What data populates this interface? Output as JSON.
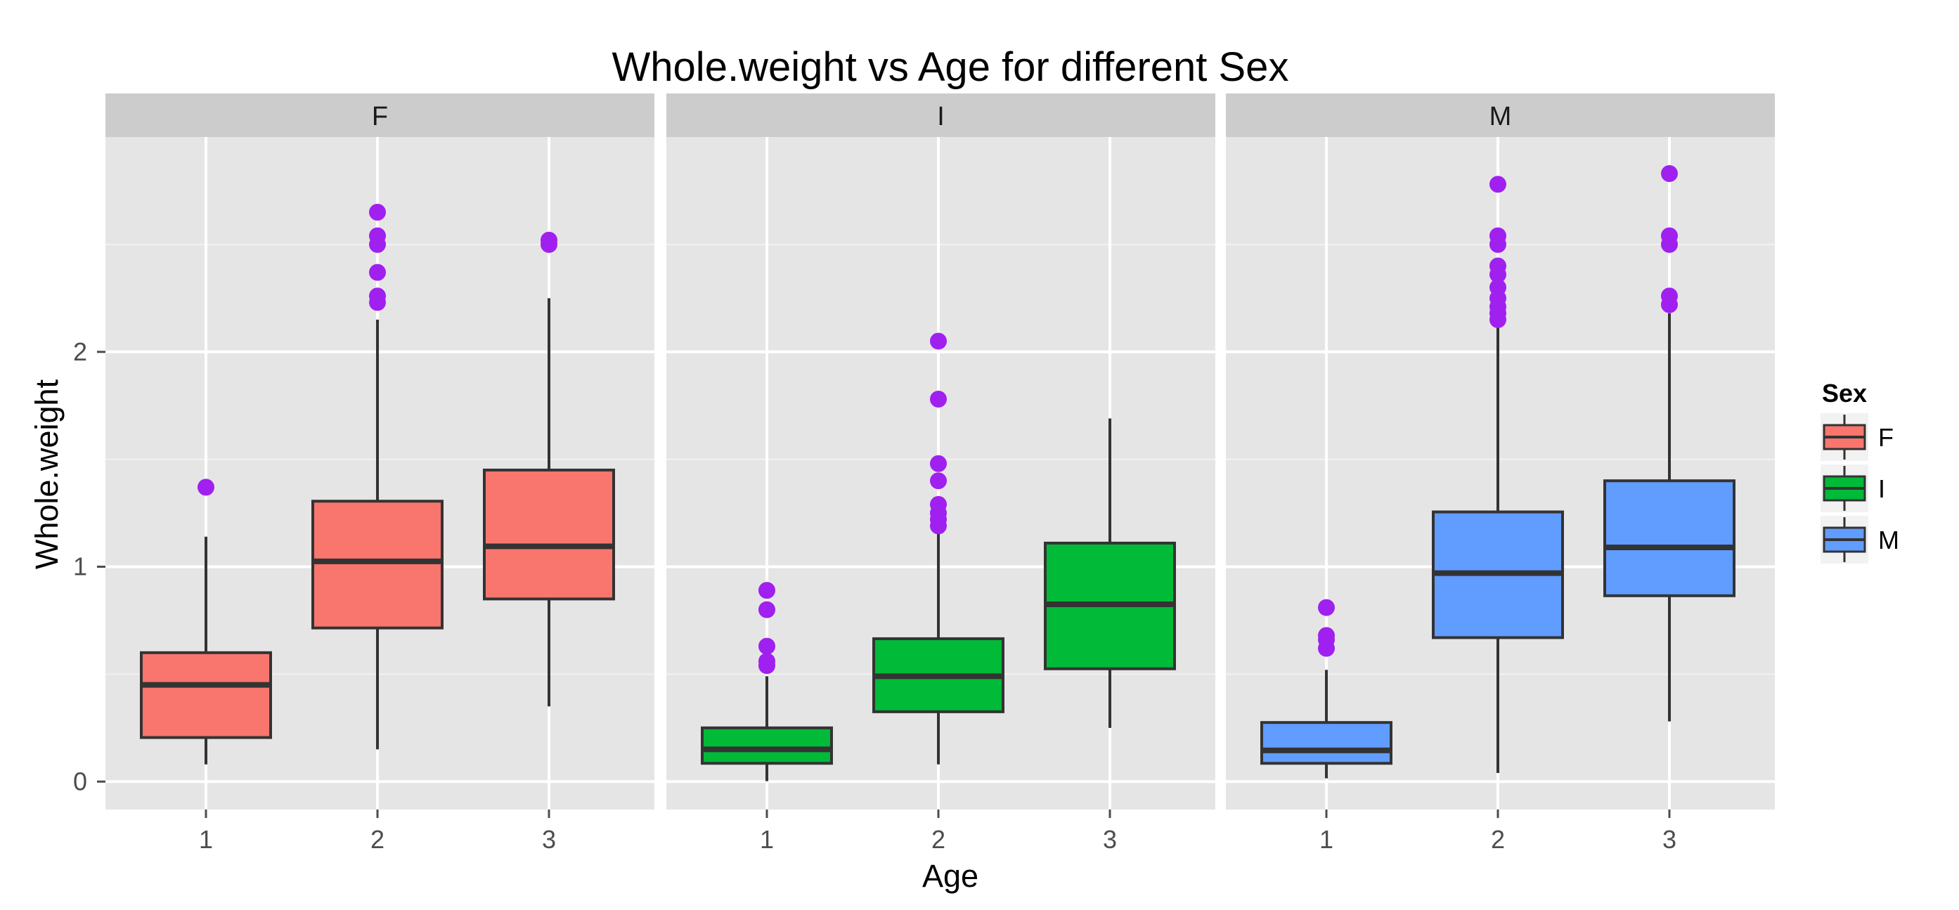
{
  "chart_data": {
    "type": "boxplot",
    "title": "Whole.weight vs Age for different Sex",
    "xlabel": "Age",
    "ylabel": "Whole.weight",
    "ylim": [
      -0.13,
      3.0
    ],
    "yticks": [
      0,
      1,
      2
    ],
    "ytick_labels": [
      "0",
      "1",
      "2"
    ],
    "categories": [
      "1",
      "2",
      "3"
    ],
    "grid": true,
    "facets": [
      {
        "label": "F",
        "fill": "#F8766D",
        "boxes": [
          {
            "age": "1",
            "lower_whisker": 0.08,
            "q1": 0.205,
            "median": 0.45,
            "q3": 0.6,
            "upper_whisker": 1.14,
            "outliers": [
              1.37
            ]
          },
          {
            "age": "2",
            "lower_whisker": 0.15,
            "q1": 0.715,
            "median": 1.025,
            "q3": 1.305,
            "upper_whisker": 2.15,
            "outliers": [
              2.23,
              2.26,
              2.37,
              2.5,
              2.54,
              2.65
            ]
          },
          {
            "age": "3",
            "lower_whisker": 0.35,
            "q1": 0.85,
            "median": 1.095,
            "q3": 1.45,
            "upper_whisker": 2.25,
            "outliers": [
              2.5,
              2.52
            ]
          }
        ]
      },
      {
        "label": "I",
        "fill": "#00BA38",
        "boxes": [
          {
            "age": "1",
            "lower_whisker": 0.002,
            "q1": 0.085,
            "median": 0.15,
            "q3": 0.25,
            "upper_whisker": 0.49,
            "outliers": [
              0.54,
              0.56,
              0.63,
              0.8,
              0.89
            ]
          },
          {
            "age": "2",
            "lower_whisker": 0.08,
            "q1": 0.325,
            "median": 0.49,
            "q3": 0.665,
            "upper_whisker": 1.16,
            "outliers": [
              1.19,
              1.22,
              1.25,
              1.29,
              1.4,
              1.48,
              1.78,
              2.05
            ]
          },
          {
            "age": "3",
            "lower_whisker": 0.25,
            "q1": 0.525,
            "median": 0.825,
            "q3": 1.11,
            "upper_whisker": 1.69,
            "outliers": []
          }
        ]
      },
      {
        "label": "M",
        "fill": "#619CFF",
        "boxes": [
          {
            "age": "1",
            "lower_whisker": 0.015,
            "q1": 0.085,
            "median": 0.145,
            "q3": 0.275,
            "upper_whisker": 0.52,
            "outliers": [
              0.62,
              0.66,
              0.68,
              0.81
            ]
          },
          {
            "age": "2",
            "lower_whisker": 0.04,
            "q1": 0.67,
            "median": 0.97,
            "q3": 1.255,
            "upper_whisker": 2.12,
            "outliers": [
              2.15,
              2.18,
              2.21,
              2.25,
              2.3,
              2.36,
              2.4,
              2.5,
              2.54,
              2.78
            ]
          },
          {
            "age": "3",
            "lower_whisker": 0.28,
            "q1": 0.865,
            "median": 1.09,
            "q3": 1.4,
            "upper_whisker": 2.18,
            "outliers": [
              2.22,
              2.26,
              2.5,
              2.54,
              2.83
            ]
          }
        ]
      }
    ],
    "legend": {
      "title": "Sex",
      "position": "right",
      "entries": [
        {
          "label": "F",
          "fill": "#F8766D"
        },
        {
          "label": "I",
          "fill": "#00BA38"
        },
        {
          "label": "M",
          "fill": "#619CFF"
        }
      ]
    },
    "outlier_color": "#A020F0",
    "panel_background": "#E5E5E5",
    "strip_background": "#CCCCCC"
  }
}
